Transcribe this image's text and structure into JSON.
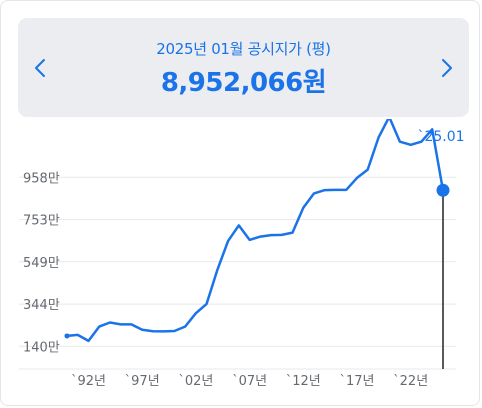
{
  "header": {
    "title": "2025년 01월 공시지가 (평)",
    "value": "8,952,066원",
    "prev_icon": "chevron-left-icon",
    "next_icon": "chevron-right-icon"
  },
  "colors": {
    "accent": "#1a73e8",
    "header_bg": "#ebedf0",
    "grid": "#e6e8eb",
    "axis_text": "#666a70"
  },
  "chart_data": {
    "type": "line",
    "title": "",
    "xlabel": "",
    "ylabel": "",
    "ylim": [
      30,
      1240
    ],
    "y_ticks": [
      140,
      344,
      549,
      753,
      958
    ],
    "y_tick_labels": [
      "140만",
      "344만",
      "549만",
      "753만",
      "958만"
    ],
    "x_ticks": [
      1992,
      1997,
      2002,
      2007,
      2012,
      2017,
      2022
    ],
    "x_tick_labels": [
      "`92년",
      "`97년",
      "`02년",
      "`07년",
      "`12년",
      "`17년",
      "`22년"
    ],
    "grid": true,
    "highlight": {
      "x": 2025.01,
      "y": 895,
      "label": "`25.01"
    },
    "series": [
      {
        "x": [
          1990,
          1991,
          1992,
          1993,
          1994,
          1995,
          1996,
          1997,
          1998,
          1999,
          2000,
          2001,
          2002,
          2003,
          2004,
          2005,
          2006,
          2007,
          2008,
          2009,
          2010,
          2011,
          2012,
          2013,
          2014,
          2015,
          2016,
          2017,
          2018,
          2019,
          2020,
          2021,
          2022,
          2023,
          2024,
          2025.01
        ],
        "y": [
          190,
          195,
          166,
          235,
          255,
          246,
          246,
          220,
          213,
          212,
          214,
          235,
          300,
          345,
          510,
          650,
          725,
          655,
          671,
          678,
          679,
          690,
          810,
          880,
          896,
          897,
          897,
          955,
          995,
          1150,
          1250,
          1130,
          1115,
          1130,
          1190,
          895
        ]
      }
    ]
  }
}
